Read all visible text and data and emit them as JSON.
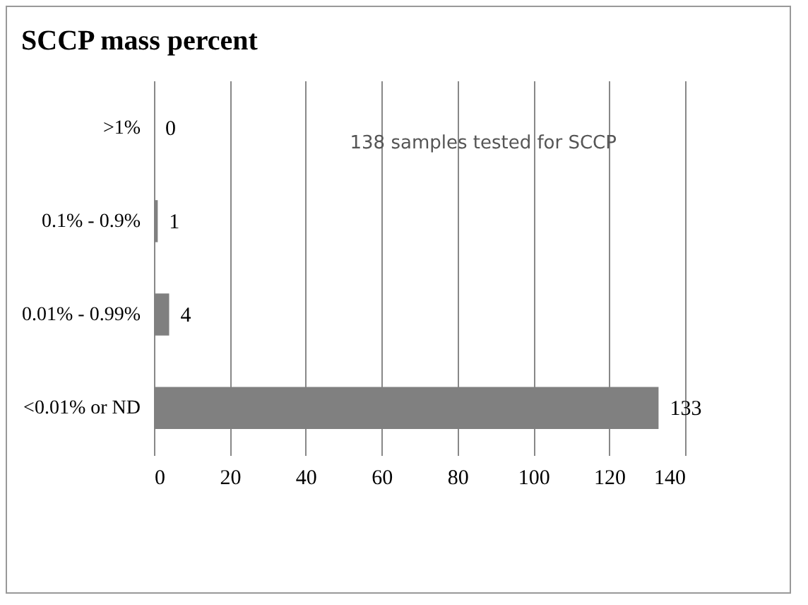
{
  "chart_data": {
    "type": "bar",
    "orientation": "horizontal",
    "title": "SCCP mass percent",
    "categories": [
      ">1%",
      "0.1% - 0.9%",
      "0.01% - 0.99%",
      "<0.01% or ND"
    ],
    "values": [
      0,
      1,
      4,
      133
    ],
    "color": "#808080",
    "xlim": [
      0,
      140
    ],
    "xticks": [
      0,
      20,
      40,
      60,
      80,
      100,
      120,
      140
    ],
    "grid": "x",
    "data_labels": true,
    "annotations": [
      "138 samples tested for SCCP"
    ]
  }
}
